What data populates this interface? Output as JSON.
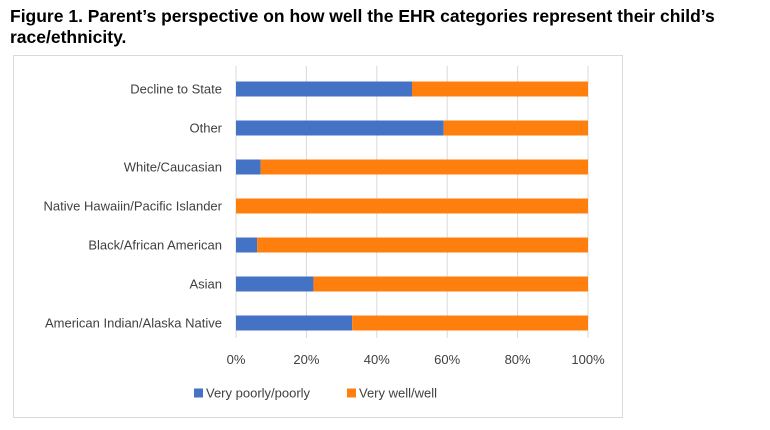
{
  "figure": {
    "title": "Figure 1. Parent’s perspective on how well the EHR categories represent their child’s race/ethnicity."
  },
  "chart_data": {
    "type": "bar",
    "orientation": "horizontal",
    "stacked": "100%",
    "title": "",
    "xlabel": "",
    "ylabel": "",
    "categories": [
      "Decline to State",
      "Other",
      "White/Caucasian",
      "Native Hawaiin/Pacific Islander",
      "Black/African American",
      "Asian",
      "American Indian/Alaska Native"
    ],
    "series": [
      {
        "name": "Very poorly/poorly",
        "color": "#4472c4",
        "values": [
          50,
          59,
          7,
          0,
          6,
          22,
          33
        ]
      },
      {
        "name": "Very well/well",
        "color": "#ff7f0e",
        "values": [
          50,
          41,
          93,
          100,
          94,
          78,
          67
        ]
      }
    ],
    "xlim": [
      0,
      100
    ],
    "x_ticks": [
      "0%",
      "20%",
      "40%",
      "60%",
      "80%",
      "100%"
    ],
    "grid": "vertical",
    "grid_color": "#d9d9d9",
    "legend_position": "bottom"
  }
}
